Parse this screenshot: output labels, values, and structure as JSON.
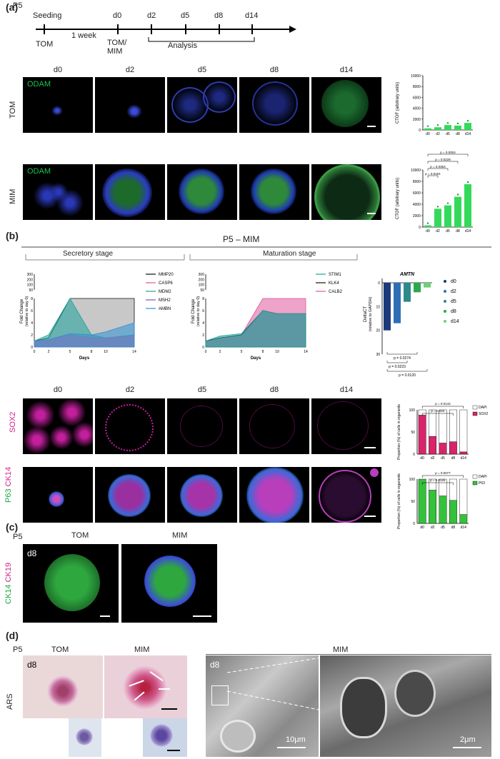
{
  "panels": {
    "a": "(a)",
    "b": "(b)",
    "c": "(c)",
    "d": "(d)"
  },
  "timeline": {
    "passage": "P5",
    "seeding": "Seeding",
    "one_week": "1 week",
    "tom": "TOM",
    "tom_mim": "TOM/\nMIM",
    "analysis": "Analysis",
    "days": [
      "d0",
      "d2",
      "d5",
      "d8",
      "d14"
    ]
  },
  "panel_a": {
    "columns": [
      "d0",
      "d2",
      "d5",
      "d8",
      "d14"
    ],
    "rows": [
      "TOM",
      "MIM"
    ],
    "stain": "ODAM",
    "tom_chart": {
      "ylabel": "CTOF (arbitrary units)",
      "yticks": [
        "0",
        "2000",
        "4000",
        "6000",
        "8000",
        "10000"
      ],
      "categories": [
        "d0",
        "d2",
        "d5",
        "d8",
        "d14"
      ]
    },
    "mim_chart": {
      "ylabel": "CTOF (arbitrary units)",
      "yticks": [
        "0",
        "2000",
        "4000",
        "6000",
        "8000",
        "10000"
      ],
      "categories": [
        "d0",
        "d2",
        "d5",
        "d8",
        "d14"
      ],
      "pvalues": [
        "p = 0.0004",
        "p = 0.0228",
        "p = 0.0364",
        "p = 0.0191"
      ]
    }
  },
  "panel_b": {
    "title": "P5 – MIM",
    "secretory": "Secretory stage",
    "maturation": "Maturation stage",
    "ylabel_line1": "Fold Change",
    "ylabel_line2": "(relative to day 0)",
    "xlabel": "Days",
    "xticks": [
      "0",
      "2",
      "5",
      "8",
      "10",
      "14"
    ],
    "yticks_upper": [
      "300",
      "200",
      "100",
      "50"
    ],
    "yticks_lower": [
      "8",
      "6",
      "4",
      "2",
      "0"
    ],
    "legend_secretory": [
      {
        "name": "MMP20",
        "color": "#111111"
      },
      {
        "name": "CASP6",
        "color": "#e0579c"
      },
      {
        "name": "MDM2",
        "color": "#1aa39a"
      },
      {
        "name": "MSH2",
        "color": "#7b4fb8"
      },
      {
        "name": "AMBN",
        "color": "#2f8fd6"
      }
    ],
    "legend_maturation": [
      {
        "name": "STIM1",
        "color": "#1aa39a"
      },
      {
        "name": "KLK4",
        "color": "#111111"
      },
      {
        "name": "CALB2",
        "color": "#e0579c"
      }
    ],
    "amtn": {
      "title": "AMTN",
      "ylabel_line1": "DeltaCT",
      "ylabel_line2": "(relative to GAPDH)",
      "yticks": [
        "0",
        "10",
        "20",
        "30"
      ],
      "legend": [
        "d0",
        "d2",
        "d5",
        "d8",
        "d14"
      ],
      "pvalues": [
        "p = 0.0274",
        "p = 0.0223",
        "p = 0.0120"
      ]
    },
    "columns": [
      "d0",
      "d2",
      "d5",
      "d8",
      "d14"
    ],
    "sox2_label": "SOX2",
    "p63_label": "P63",
    "ck14_label": "CK14",
    "sox2_chart": {
      "ylabel": "Proportion (%) of cells in organoids",
      "pvalues": [
        "p = 0.0142",
        "p = 0.044"
      ],
      "legend": [
        "DAPI",
        "SOX2"
      ],
      "yticks": [
        "0",
        "50",
        "100"
      ],
      "categories": [
        "d0",
        "d2",
        "d5",
        "d8",
        "d14"
      ]
    },
    "p63_chart": {
      "ylabel": "Proportion (%) of cells in organoids",
      "pvalues": [
        "p = 0.0077",
        "p = 0.0125"
      ],
      "legend": [
        "DAPI",
        "P63"
      ],
      "yticks": [
        "0",
        "50",
        "100"
      ],
      "categories": [
        "d0",
        "d2",
        "d5",
        "d8",
        "d14"
      ]
    }
  },
  "panel_c": {
    "passage": "P5",
    "tom": "TOM",
    "mim": "MIM",
    "day": "d8",
    "ck14": "CK14",
    "ck19": "CK19"
  },
  "panel_d": {
    "passage": "P5",
    "tom": "TOM",
    "mim": "MIM",
    "mim_em": "MIM",
    "day": "d8",
    "stain": "ARS",
    "scale_10": "10μm",
    "scale_2": "2μm"
  },
  "chart_data": [
    {
      "type": "bar",
      "categories": [
        "d0",
        "d2",
        "d5",
        "d8",
        "d14"
      ],
      "values": [
        300,
        500,
        900,
        800,
        1300
      ],
      "title": "",
      "ylabel": "CTOF (arbitrary units)",
      "ylim": [
        0,
        10000
      ]
    },
    {
      "type": "bar",
      "categories": [
        "d0",
        "d2",
        "d5",
        "d8",
        "d14"
      ],
      "values": [
        300,
        3200,
        3800,
        5300,
        7500
      ],
      "title": "",
      "ylabel": "CTOF (arbitrary units)",
      "ylim": [
        0,
        10000
      ]
    },
    {
      "type": "bar",
      "categories": [
        "d0",
        "d2",
        "d5",
        "d8",
        "d14"
      ],
      "series": [
        {
          "name": "SOX2",
          "values": [
            88,
            40,
            25,
            28,
            5
          ]
        },
        {
          "name": "DAPI",
          "values": [
            12,
            60,
            75,
            72,
            95
          ]
        }
      ],
      "ylabel": "Proportion (%) of cells in organoids",
      "ylim": [
        0,
        100
      ]
    },
    {
      "type": "bar",
      "categories": [
        "d0",
        "d2",
        "d5",
        "d8",
        "d14"
      ],
      "series": [
        {
          "name": "P63",
          "values": [
            100,
            75,
            62,
            52,
            20
          ]
        },
        {
          "name": "DAPI",
          "values": [
            0,
            25,
            38,
            48,
            80
          ]
        }
      ],
      "ylabel": "Proportion (%) of cells in organoids",
      "ylim": [
        0,
        100
      ]
    }
  ]
}
